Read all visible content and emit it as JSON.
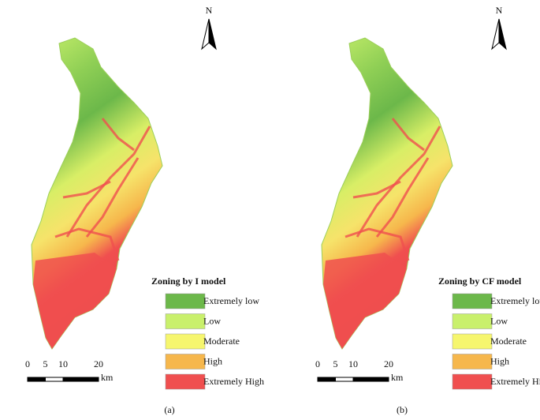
{
  "panels": [
    {
      "north": "N",
      "legend_title": "Zoning by I model",
      "legend": [
        {
          "label": "Extremely low",
          "color": "#6cb84a"
        },
        {
          "label": "Low",
          "color": "#c9f06c"
        },
        {
          "label": "Moderate",
          "color": "#f6f66e"
        },
        {
          "label": "High",
          "color": "#f6b74c"
        },
        {
          "label": "Extremely High",
          "color": "#f04f4f"
        }
      ],
      "scale": {
        "ticks": [
          0,
          5,
          10,
          20
        ],
        "unit": "km"
      },
      "caption": "(a)"
    },
    {
      "north": "N",
      "legend_title": "Zoning by CF model",
      "legend": [
        {
          "label": "Extremely low",
          "color": "#6cb84a"
        },
        {
          "label": "Low",
          "color": "#c9f06c"
        },
        {
          "label": "Moderate",
          "color": "#f6f66e"
        },
        {
          "label": "High",
          "color": "#f6b74c"
        },
        {
          "label": "Extremely High",
          "color": "#f04f4f"
        }
      ],
      "scale": {
        "ticks": [
          0,
          5,
          10,
          20
        ],
        "unit": "km"
      },
      "caption": "(b)"
    }
  ]
}
